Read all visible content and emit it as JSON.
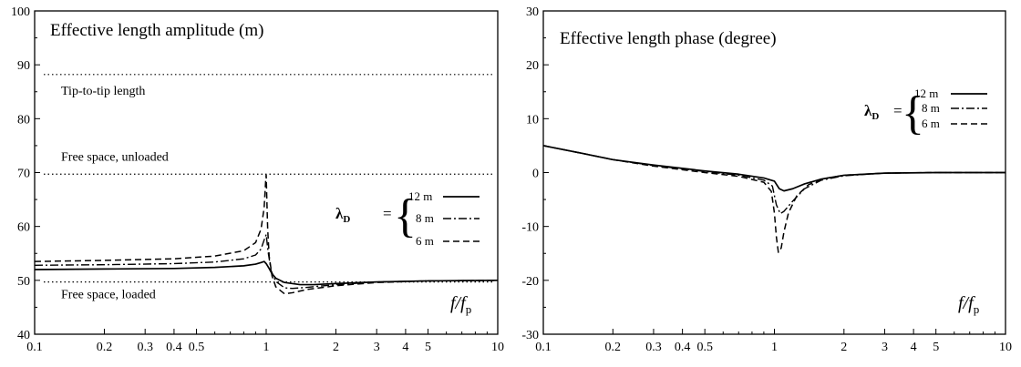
{
  "chart_data": [
    {
      "type": "line",
      "title": "Effective length amplitude (m)",
      "xlabel": "f/fp",
      "xlabel_var": "f",
      "xlabel_den": "f",
      "xlabel_sub": "p",
      "xscale": "log",
      "xlim": [
        0.1,
        10
      ],
      "ylim": [
        40,
        100
      ],
      "xticks": [
        0.1,
        0.2,
        0.3,
        0.4,
        0.5,
        1,
        2,
        3,
        4,
        5,
        10
      ],
      "xtick_labels": [
        "0.1",
        "0.2",
        "0.3",
        "0.4",
        "0.5",
        "1",
        "2",
        "3",
        "4",
        "5",
        "10"
      ],
      "yticks": [
        40,
        50,
        60,
        70,
        80,
        90,
        100
      ],
      "ytick_labels": [
        "40",
        "50",
        "60",
        "70",
        "80",
        "90",
        "100"
      ],
      "legend": {
        "symbol": "λ",
        "subscript": "D",
        "equals": "=",
        "brace": "{",
        "entries": [
          "12 m",
          "8 m",
          "6 m"
        ],
        "placement": "right-middle"
      },
      "reference_lines": [
        {
          "y": 88.2,
          "label": "Tip-to-tip length"
        },
        {
          "y": 69.7,
          "label": "Free space, unloaded"
        },
        {
          "y": 49.7,
          "label": "Free space, loaded"
        }
      ],
      "series": [
        {
          "name": "12 m",
          "style": "solid",
          "x": [
            0.1,
            0.2,
            0.4,
            0.6,
            0.8,
            0.9,
            0.95,
            0.98,
            1.0,
            1.03,
            1.06,
            1.1,
            1.2,
            1.4,
            1.6,
            2,
            3,
            5,
            10
          ],
          "y": [
            52.0,
            52.1,
            52.2,
            52.4,
            52.7,
            53.0,
            53.3,
            53.5,
            53.1,
            52.2,
            51.2,
            50.4,
            49.6,
            49.2,
            49.2,
            49.4,
            49.7,
            49.9,
            50.0
          ]
        },
        {
          "name": "8 m",
          "style": "dashdot",
          "x": [
            0.1,
            0.2,
            0.4,
            0.6,
            0.8,
            0.9,
            0.95,
            0.98,
            1.0,
            1.02,
            1.05,
            1.1,
            1.2,
            1.3,
            1.5,
            2,
            3,
            5,
            10
          ],
          "y": [
            52.8,
            52.9,
            53.1,
            53.4,
            54.0,
            54.7,
            55.8,
            57.5,
            58.5,
            55.2,
            51.8,
            49.8,
            48.6,
            48.5,
            48.7,
            49.2,
            49.7,
            49.9,
            50.0
          ]
        },
        {
          "name": "6 m",
          "style": "dashed",
          "x": [
            0.1,
            0.2,
            0.4,
            0.6,
            0.8,
            0.9,
            0.95,
            0.98,
            0.995,
            1.0,
            1.005,
            1.015,
            1.03,
            1.06,
            1.1,
            1.2,
            1.3,
            1.5,
            2,
            3,
            5,
            10
          ],
          "y": [
            53.5,
            53.7,
            54.0,
            54.5,
            55.5,
            57.0,
            59.5,
            63.5,
            68.5,
            69.6,
            66.0,
            59.5,
            54.5,
            50.8,
            48.8,
            47.5,
            47.7,
            48.3,
            49.0,
            49.6,
            49.9,
            50.0
          ]
        }
      ]
    },
    {
      "type": "line",
      "title": "Effective length phase (degree)",
      "xlabel": "f/fp",
      "xlabel_var": "f",
      "xlabel_den": "f",
      "xlabel_sub": "p",
      "xscale": "log",
      "xlim": [
        0.1,
        10
      ],
      "ylim": [
        -30,
        30
      ],
      "xticks": [
        0.1,
        0.2,
        0.3,
        0.4,
        0.5,
        1,
        2,
        3,
        4,
        5,
        10
      ],
      "xtick_labels": [
        "0.1",
        "0.2",
        "0.3",
        "0.4",
        "0.5",
        "1",
        "2",
        "3",
        "4",
        "5",
        "10"
      ],
      "yticks": [
        -30,
        -20,
        -10,
        0,
        10,
        20,
        30
      ],
      "ytick_labels": [
        "-30",
        "-20",
        "-10",
        "0",
        "10",
        "20",
        "30"
      ],
      "legend": {
        "symbol": "λ",
        "subscript": "D",
        "equals": "=",
        "brace": "{",
        "entries": [
          "12 m",
          "8 m",
          "6 m"
        ],
        "placement": "top-right"
      },
      "series": [
        {
          "name": "12 m",
          "style": "solid",
          "x": [
            0.1,
            0.15,
            0.2,
            0.3,
            0.5,
            0.7,
            0.9,
            1.0,
            1.05,
            1.1,
            1.2,
            1.35,
            1.6,
            2,
            3,
            5,
            10
          ],
          "y": [
            5.0,
            3.5,
            2.4,
            1.4,
            0.3,
            -0.3,
            -1.0,
            -1.6,
            -3.0,
            -3.4,
            -3.0,
            -2.1,
            -1.2,
            -0.5,
            -0.1,
            0.0,
            0.0
          ]
        },
        {
          "name": "8 m",
          "style": "dashdot",
          "x": [
            0.1,
            0.15,
            0.2,
            0.3,
            0.5,
            0.7,
            0.9,
            0.98,
            1.02,
            1.06,
            1.1,
            1.2,
            1.35,
            1.6,
            2,
            3,
            5,
            10
          ],
          "y": [
            5.0,
            3.5,
            2.4,
            1.3,
            0.2,
            -0.5,
            -1.4,
            -2.5,
            -6.0,
            -7.6,
            -7.2,
            -5.3,
            -3.0,
            -1.4,
            -0.6,
            -0.1,
            0.0,
            0.0
          ]
        },
        {
          "name": "6 m",
          "style": "dashed",
          "x": [
            0.1,
            0.15,
            0.2,
            0.3,
            0.5,
            0.7,
            0.9,
            0.97,
            1.0,
            1.02,
            1.04,
            1.07,
            1.1,
            1.15,
            1.25,
            1.4,
            1.6,
            2,
            3,
            5,
            10
          ],
          "y": [
            5.0,
            3.5,
            2.4,
            1.2,
            0.0,
            -0.7,
            -1.8,
            -3.5,
            -7.5,
            -12.0,
            -14.8,
            -14.0,
            -11.0,
            -7.5,
            -4.3,
            -2.3,
            -1.2,
            -0.5,
            -0.1,
            0.0,
            0.0
          ]
        }
      ]
    }
  ]
}
